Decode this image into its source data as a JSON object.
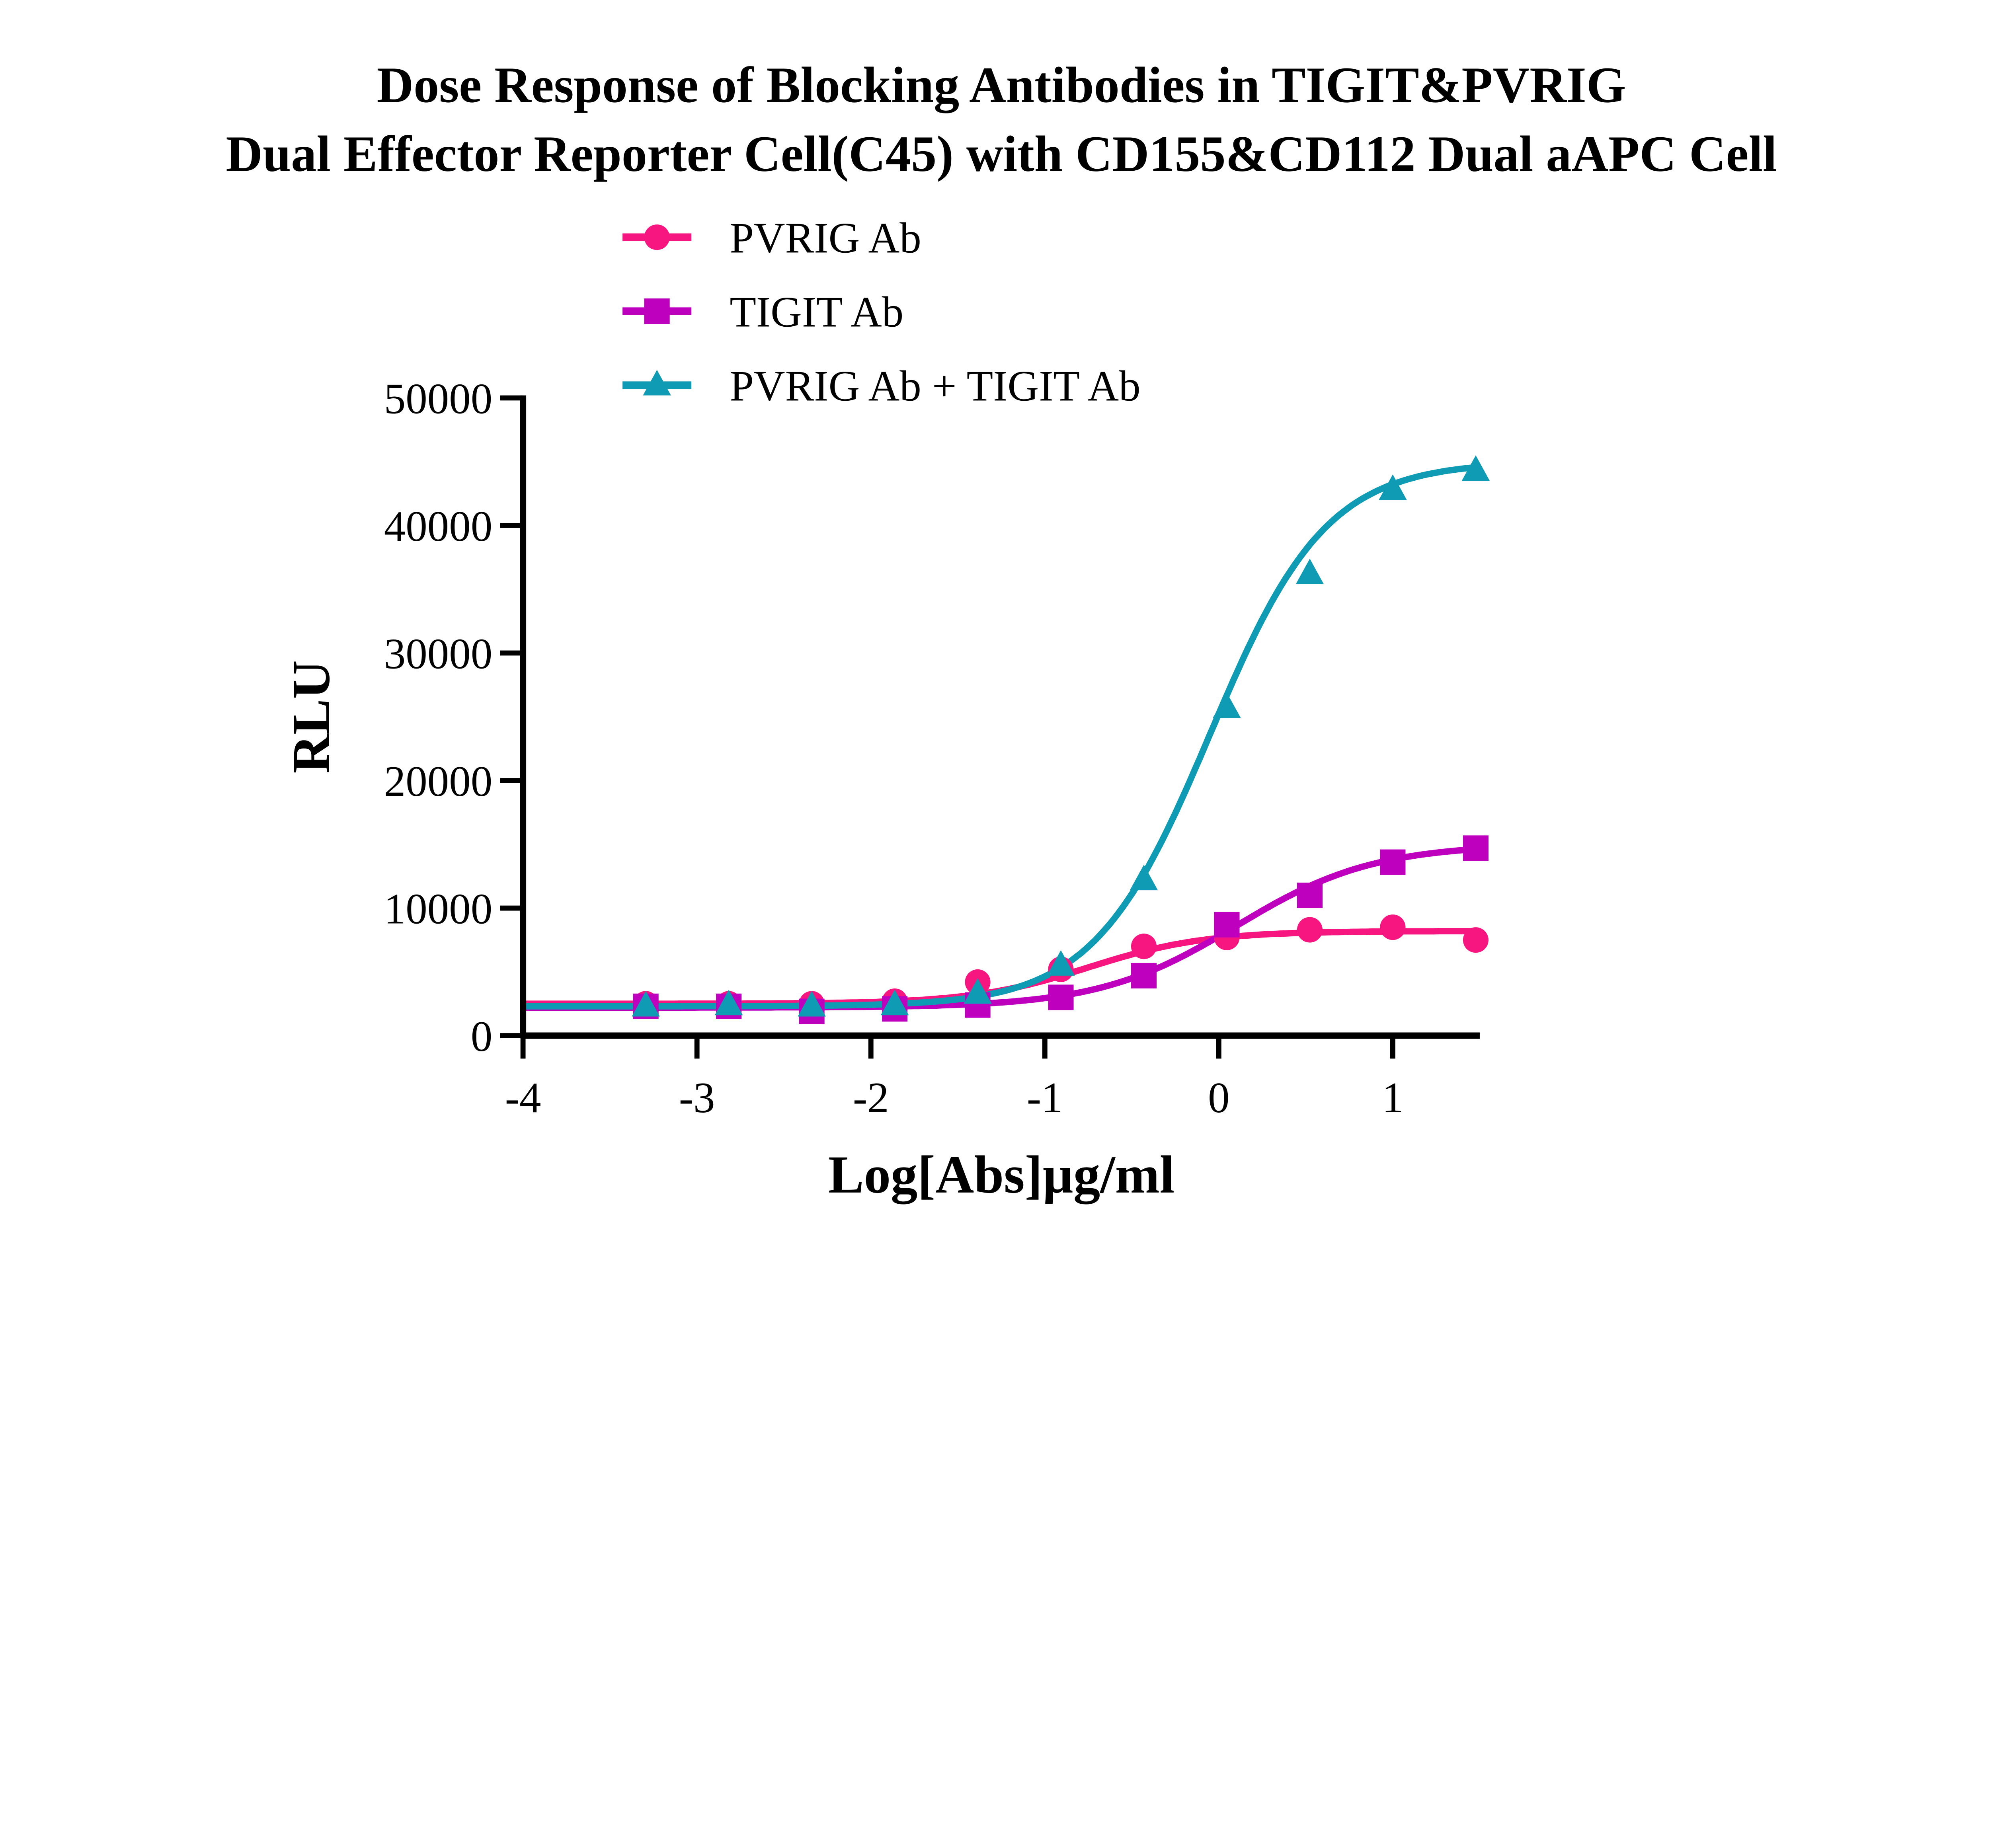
{
  "chart_data": {
    "type": "line",
    "title": [
      "Dose Response of Blocking Antibodies in TIGIT&PVRIG",
      "Dual Effector Reporter Cell(C45) with CD155&CD112 Dual aAPC Cell"
    ],
    "xlabel": "Log[Abs]µg/ml",
    "ylabel": "RLU",
    "xlim": [
      -4,
      1.5
    ],
    "ylim": [
      0,
      50000
    ],
    "xticks": [
      "-4",
      "-3",
      "-2",
      "-1",
      "0",
      "1"
    ],
    "yticks": [
      "0",
      "10000",
      "20000",
      "30000",
      "40000",
      "50000"
    ],
    "grid": false,
    "legend_placement": "top",
    "x": [
      -3.294,
      -2.817,
      -2.34,
      -1.863,
      -1.386,
      -0.908,
      -0.431,
      0.046,
      0.523,
      1.0,
      1.477
    ],
    "series": [
      {
        "name": "PVRIG Ab",
        "color": "#F7167F",
        "marker": "circle",
        "values": [
          2500,
          2500,
          2500,
          2700,
          4200,
          5200,
          7000,
          7700,
          8300,
          8500,
          7500
        ]
      },
      {
        "name": "TIGIT Ab",
        "color": "#BE00BE",
        "marker": "square",
        "values": [
          2300,
          2300,
          1900,
          2100,
          2400,
          3000,
          4700,
          8700,
          11000,
          13600,
          14700
        ]
      },
      {
        "name": "PVRIG Ab + TIGIT Ab",
        "color": "#0F9BB4",
        "marker": "triangle",
        "values": [
          2300,
          2400,
          2300,
          2400,
          3300,
          5500,
          12200,
          25700,
          36200,
          42800,
          44300
        ]
      }
    ]
  }
}
